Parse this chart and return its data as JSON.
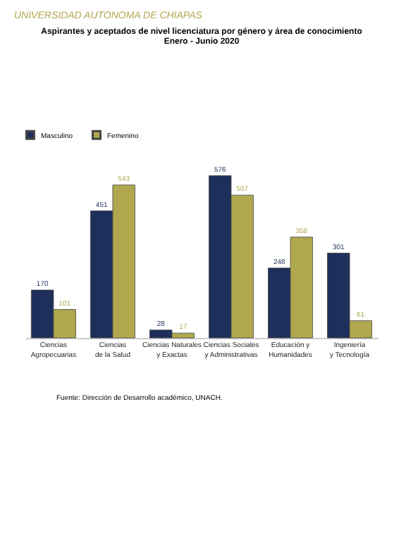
{
  "chart_data": {
    "type": "bar",
    "title": "Aspirantes y aceptados de nivel licenciatura por  género y área de conocimiento",
    "subtitle": "Enero - Junio 2020",
    "categories": [
      "Ciencias Agropecuarias",
      "Ciencias de la Salud",
      "Ciencias Naturales y Exactas",
      "Ciencias Sociales y Administrativas",
      "Educación y Humanidades",
      "Ingeniería y Tecnología"
    ],
    "series": [
      {
        "name": "Masculino",
        "color": "#1f2f5c",
        "values": [
          170,
          451,
          28,
          576,
          248,
          301
        ]
      },
      {
        "name": "Femenino",
        "color": "#b0a84f",
        "values": [
          101,
          543,
          17,
          507,
          358,
          61
        ]
      }
    ],
    "data_labels": true,
    "legend": "top",
    "grid": false,
    "annotations": [
      "UNIVERSIDAD AUTONOMA DE CHIAPAS",
      "Fuente: Dirección de Desarrollo académico, UNACH."
    ]
  }
}
